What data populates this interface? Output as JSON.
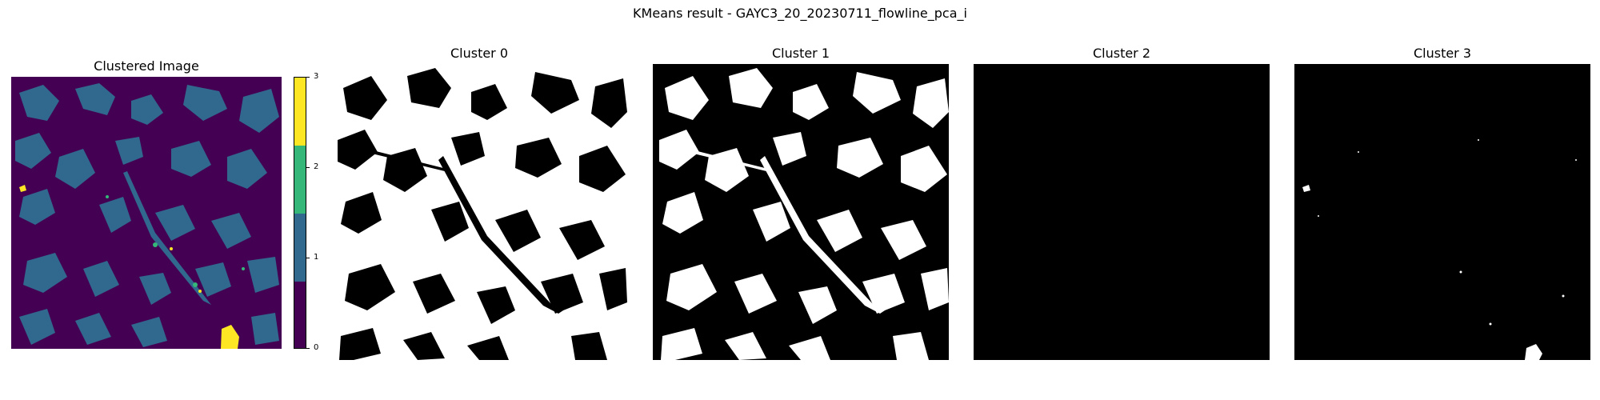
{
  "figure": {
    "suptitle": "KMeans result - GAYC3_20_20230711_flowline_pca_i"
  },
  "panels": [
    {
      "title": "Clustered Image"
    },
    {
      "title": "Cluster 0"
    },
    {
      "title": "Cluster 1"
    },
    {
      "title": "Cluster 2"
    },
    {
      "title": "Cluster 3"
    }
  ],
  "colorbar": {
    "ticks": [
      "0",
      "1",
      "2",
      "3"
    ],
    "colors": [
      "#440154",
      "#31688e",
      "#35b779",
      "#fde725"
    ]
  },
  "colors": {
    "background": "#440154",
    "cluster1": "#31688e",
    "cluster2": "#35b779",
    "cluster3": "#fde725",
    "mask_on": "#ffffff",
    "mask_off": "#000000"
  }
}
